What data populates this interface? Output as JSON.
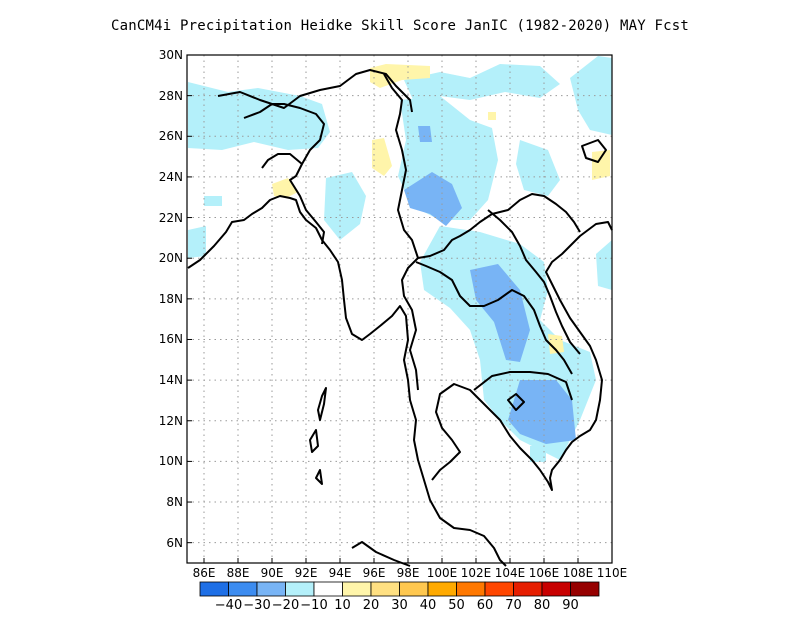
{
  "title": "CanCM4i  Precipitation Heidke Skill Score JanIC (1982-2020) MAY Fcst",
  "y_ticks": [
    "30N",
    "28N",
    "26N",
    "24N",
    "22N",
    "20N",
    "18N",
    "16N",
    "14N",
    "12N",
    "10N",
    "8N",
    "6N"
  ],
  "x_ticks": [
    "86E",
    "88E",
    "90E",
    "92E",
    "94E",
    "96E",
    "98E",
    "100E",
    "102E",
    "104E",
    "106E",
    "108E",
    "110E"
  ],
  "colorbar": {
    "colors": [
      "#1e6fe6",
      "#3c8cf0",
      "#78b4f5",
      "#b4f0fa",
      "#ffffff",
      "#fff5aa",
      "#ffe082",
      "#ffc850",
      "#ffaa00",
      "#ff7800",
      "#ff4600",
      "#e61e00",
      "#c80000",
      "#960000"
    ],
    "labels": [
      "−40",
      "−30",
      "−20",
      "−10",
      "10",
      "20",
      "30",
      "40",
      "50",
      "60",
      "70",
      "80",
      "90"
    ]
  },
  "map": {
    "lon_range": [
      85,
      110
    ],
    "lat_range": [
      5,
      30
    ],
    "grid": true,
    "region": "Indochina / Myanmar / Bangladesh"
  }
}
